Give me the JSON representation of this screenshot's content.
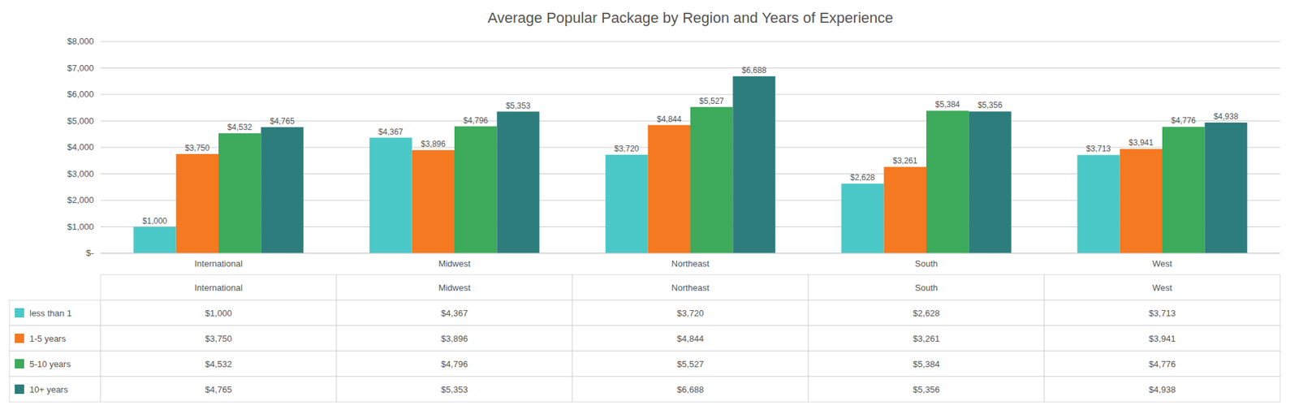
{
  "chart_data": {
    "type": "bar",
    "title": "Average Popular Package by Region and Years of Experience",
    "categories": [
      "International",
      "Midwest",
      "Northeast",
      "South",
      "West"
    ],
    "series": [
      {
        "name": "less than 1",
        "color": "#4BC8C8",
        "values": [
          1000,
          4367,
          3720,
          2628,
          3713
        ],
        "value_labels": [
          "$1,000",
          "$4,367",
          "$3,720",
          "$2,628",
          "$3,713"
        ]
      },
      {
        "name": "1-5 years",
        "color": "#F47920",
        "values": [
          3750,
          3896,
          4844,
          3261,
          3941
        ],
        "value_labels": [
          "$3,750",
          "$3,896",
          "$4,844",
          "$3,261",
          "$3,941"
        ]
      },
      {
        "name": "5-10 years",
        "color": "#3DAA5C",
        "values": [
          4532,
          4796,
          5527,
          5384,
          4776
        ],
        "value_labels": [
          "$4,532",
          "$4,796",
          "$5,527",
          "$5,384",
          "$4,776"
        ]
      },
      {
        "name": "10+ years",
        "color": "#2E7D7D",
        "values": [
          4765,
          5353,
          6688,
          5356,
          4938
        ],
        "value_labels": [
          "$4,765",
          "$5,353",
          "$6,688",
          "$5,356",
          "$4,938"
        ]
      }
    ],
    "ylim": [
      0,
      8000
    ],
    "yticks": [
      {
        "value": 0,
        "label": "$-"
      },
      {
        "value": 1000,
        "label": "$1,000"
      },
      {
        "value": 2000,
        "label": "$2,000"
      },
      {
        "value": 3000,
        "label": "$3,000"
      },
      {
        "value": 4000,
        "label": "$4,000"
      },
      {
        "value": 5000,
        "label": "$5,000"
      },
      {
        "value": 6000,
        "label": "$6,000"
      },
      {
        "value": 7000,
        "label": "$7,000"
      },
      {
        "value": 8000,
        "label": "$8,000"
      }
    ],
    "grid": true,
    "data_labels": true
  }
}
